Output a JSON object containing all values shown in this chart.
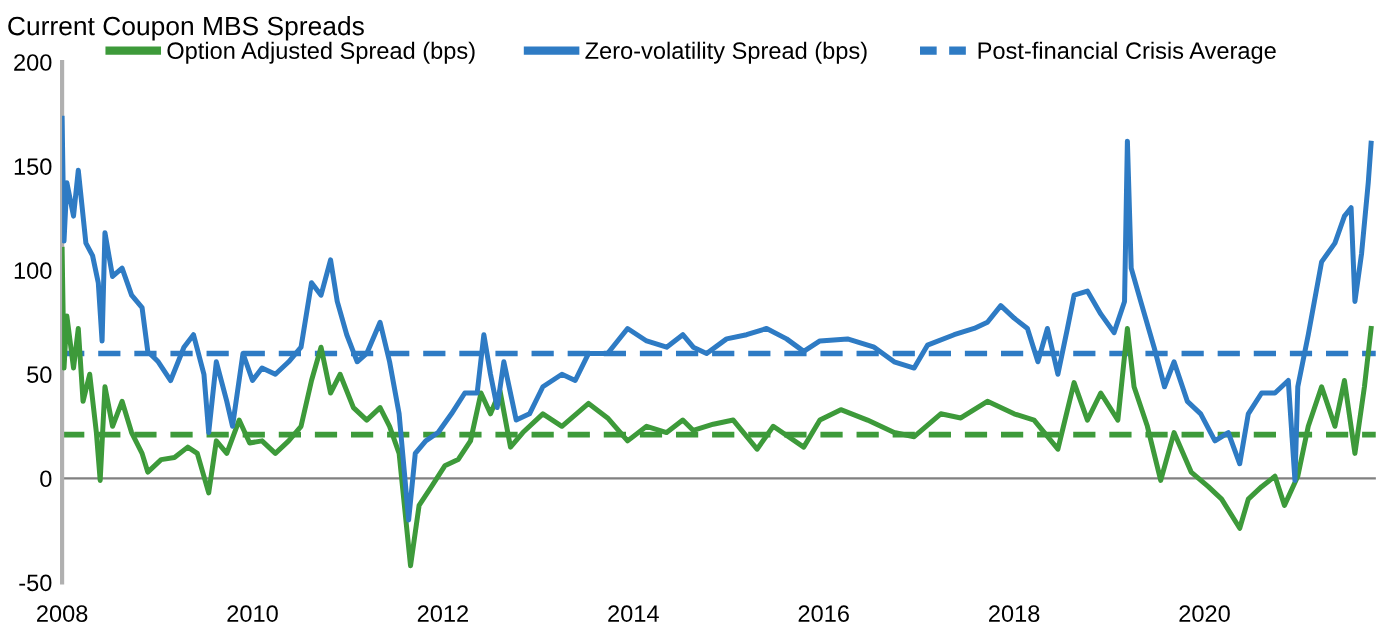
{
  "chart_data": {
    "type": "line",
    "title": "Current Coupon MBS Spreads",
    "xlim": [
      2008,
      2021.8
    ],
    "xticks": [
      2008,
      2010,
      2012,
      2014,
      2016,
      2018,
      2020
    ],
    "ylim": [
      -50,
      200
    ],
    "yticks": [
      -50,
      0,
      50,
      100,
      150,
      200
    ],
    "grid": false,
    "legend": "top left",
    "line_style": "solid",
    "marker": "none",
    "series": [
      {
        "name": "Option Adjusted Spread (bps)",
        "color": "#3d9a3a",
        "x": [
          2008,
          2008.02,
          2008.05,
          2008.12,
          2008.17,
          2008.22,
          2008.29,
          2008.36,
          2008.4,
          2008.45,
          2008.53,
          2008.63,
          2008.73,
          2008.84,
          2008.9,
          2009.04,
          2009.18,
          2009.32,
          2009.42,
          2009.54,
          2009.62,
          2009.73,
          2009.86,
          2009.97,
          2010.1,
          2010.24,
          2010.38,
          2010.51,
          2010.62,
          2010.72,
          2010.82,
          2010.92,
          2011.06,
          2011.2,
          2011.34,
          2011.44,
          2011.54,
          2011.66,
          2011.75,
          2011.88,
          2012.02,
          2012.16,
          2012.29,
          2012.4,
          2012.5,
          2012.6,
          2012.71,
          2012.84,
          2013.05,
          2013.25,
          2013.53,
          2013.73,
          2013.94,
          2014.14,
          2014.35,
          2014.52,
          2014.63,
          2014.84,
          2015.05,
          2015.3,
          2015.47,
          2015.79,
          2015.96,
          2016.18,
          2016.46,
          2016.74,
          2016.95,
          2017.23,
          2017.44,
          2017.72,
          2018.0,
          2018.21,
          2018.46,
          2018.63,
          2018.77,
          2018.91,
          2019.09,
          2019.19,
          2019.26,
          2019.4,
          2019.54,
          2019.68,
          2019.86,
          2020.04,
          2020.18,
          2020.37,
          2020.46,
          2020.6,
          2020.74,
          2020.84,
          2020.98,
          2021.09,
          2021.23,
          2021.37,
          2021.47,
          2021.58,
          2021.68,
          2021.75
        ],
        "values": [
          110,
          53,
          78,
          53,
          72,
          37,
          50,
          22,
          -1,
          44,
          25,
          37,
          22,
          12,
          3,
          9,
          10,
          15,
          12,
          -7,
          18,
          12,
          28,
          17,
          18,
          12,
          18,
          25,
          47,
          63,
          41,
          50,
          34,
          28,
          34,
          25,
          12,
          -42,
          -13,
          -4,
          6,
          9,
          18,
          41,
          31,
          42,
          15,
          22,
          31,
          25,
          36,
          29,
          18,
          25,
          22,
          28,
          23,
          26,
          28,
          14,
          25,
          15,
          28,
          33,
          28,
          22,
          20,
          31,
          29,
          37,
          31,
          28,
          14,
          46,
          28,
          41,
          28,
          72,
          44,
          25,
          -1,
          22,
          3,
          -4,
          -10,
          -24,
          -10,
          -4,
          1,
          -13,
          1,
          25,
          44,
          25,
          47,
          12,
          44,
          72
        ]
      },
      {
        "name": "Zero-volatility Spread (bps)",
        "color": "#2e7bc4",
        "x": [
          2008,
          2008.02,
          2008.05,
          2008.12,
          2008.17,
          2008.25,
          2008.32,
          2008.38,
          2008.42,
          2008.45,
          2008.53,
          2008.63,
          2008.73,
          2008.84,
          2008.9,
          2009.01,
          2009.14,
          2009.28,
          2009.38,
          2009.49,
          2009.54,
          2009.62,
          2009.73,
          2009.79,
          2009.9,
          2010.0,
          2010.1,
          2010.24,
          2010.38,
          2010.51,
          2010.62,
          2010.72,
          2010.82,
          2010.89,
          2010.99,
          2011.1,
          2011.2,
          2011.34,
          2011.44,
          2011.54,
          2011.64,
          2011.71,
          2011.82,
          2011.95,
          2012.09,
          2012.23,
          2012.36,
          2012.43,
          2012.5,
          2012.57,
          2012.64,
          2012.77,
          2012.91,
          2013.05,
          2013.25,
          2013.39,
          2013.53,
          2013.73,
          2013.94,
          2014.14,
          2014.35,
          2014.52,
          2014.63,
          2014.77,
          2014.98,
          2015.19,
          2015.4,
          2015.61,
          2015.79,
          2015.96,
          2016.25,
          2016.53,
          2016.74,
          2016.95,
          2017.09,
          2017.37,
          2017.58,
          2017.72,
          2017.86,
          2018.0,
          2018.14,
          2018.25,
          2018.35,
          2018.46,
          2018.56,
          2018.63,
          2018.77,
          2018.91,
          2019.05,
          2019.16,
          2019.19,
          2019.23,
          2019.33,
          2019.47,
          2019.58,
          2019.68,
          2019.82,
          2019.96,
          2020.11,
          2020.25,
          2020.37,
          2020.46,
          2020.6,
          2020.74,
          2020.88,
          2020.95,
          2020.98,
          2021.09,
          2021.23,
          2021.37,
          2021.47,
          2021.54,
          2021.58,
          2021.65,
          2021.72,
          2021.75
        ],
        "values": [
          173,
          114,
          142,
          126,
          148,
          113,
          107,
          94,
          66,
          118,
          97,
          101,
          88,
          82,
          61,
          56,
          47,
          63,
          69,
          50,
          22,
          56,
          37,
          25,
          60,
          47,
          53,
          50,
          56,
          63,
          94,
          88,
          105,
          85,
          69,
          56,
          60,
          75,
          56,
          31,
          -20,
          12,
          18,
          22,
          31,
          41,
          41,
          69,
          50,
          34,
          56,
          28,
          31,
          44,
          50,
          47,
          60,
          60,
          72,
          66,
          63,
          69,
          63,
          60,
          67,
          69,
          72,
          67,
          61,
          66,
          67,
          63,
          56,
          53,
          64,
          69,
          72,
          75,
          83,
          77,
          72,
          56,
          72,
          50,
          72,
          88,
          90,
          79,
          70,
          85,
          162,
          101,
          85,
          63,
          44,
          56,
          37,
          31,
          18,
          22,
          7,
          31,
          41,
          41,
          47,
          -1,
          44,
          69,
          104,
          113,
          126,
          130,
          85,
          108,
          142,
          161
        ]
      }
    ],
    "ref_lines": [
      {
        "axis": "y",
        "value": 60,
        "color": "#2e7bc4",
        "line_style": "dashed",
        "label": "Post-financial Crisis Average"
      },
      {
        "axis": "y",
        "value": 21,
        "color": "#3d9a3a",
        "line_style": "dashed"
      },
      {
        "axis": "y",
        "value": 0,
        "color": "#808080",
        "line_style": "solid"
      }
    ]
  }
}
